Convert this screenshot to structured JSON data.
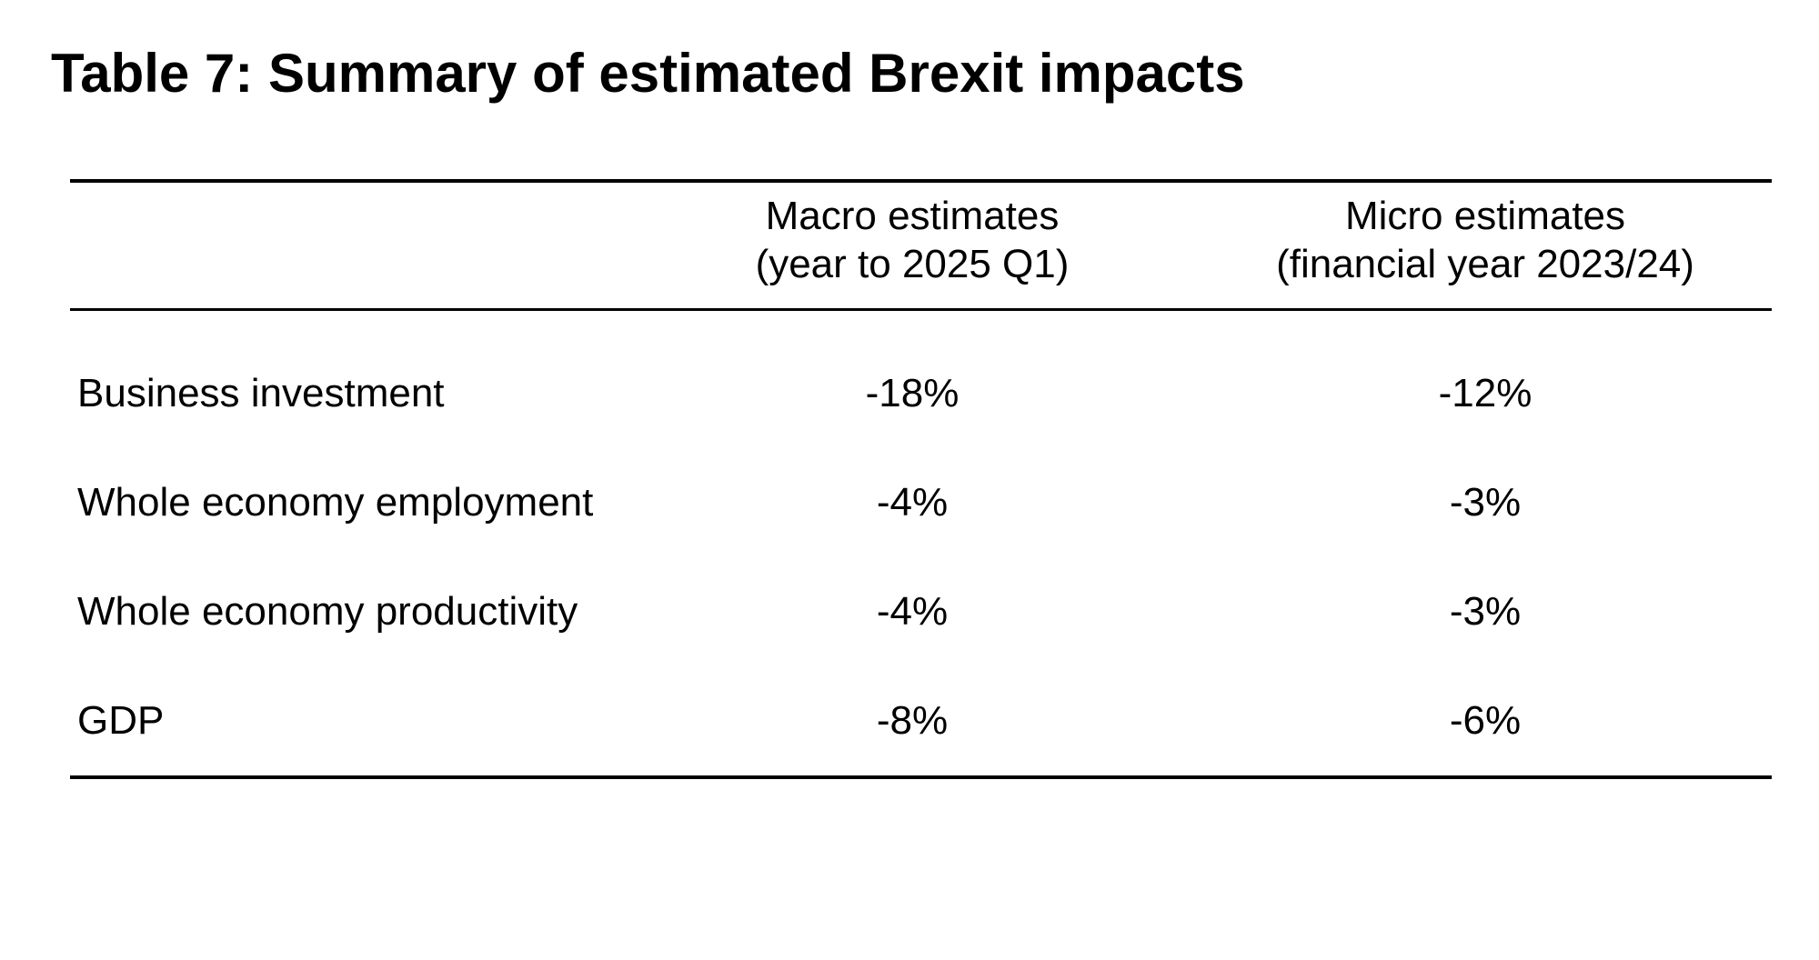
{
  "title": "Table 7: Summary of estimated Brexit impacts",
  "table": {
    "header": {
      "macro": {
        "line1": "Macro estimates",
        "line2": "(year to 2025 Q1)"
      },
      "micro": {
        "line1": "Micro estimates",
        "line2": "(financial year 2023/24)"
      }
    },
    "rows": [
      {
        "label": "Business investment",
        "macro": "-18%",
        "micro": "-12%"
      },
      {
        "label": "Whole economy employment",
        "macro": "-4%",
        "micro": "-3%"
      },
      {
        "label": "Whole economy productivity",
        "macro": "-4%",
        "micro": "-3%"
      },
      {
        "label": "GDP",
        "macro": "-8%",
        "micro": "-6%"
      }
    ]
  },
  "chart_data": {
    "type": "table",
    "title": "Table 7: Summary of estimated Brexit impacts",
    "columns": [
      "",
      "Macro estimates (year to 2025 Q1)",
      "Micro estimates (financial year 2023/24)"
    ],
    "rows": [
      [
        "Business investment",
        "-18%",
        "-12%"
      ],
      [
        "Whole economy employment",
        "-4%",
        "-3%"
      ],
      [
        "Whole economy productivity",
        "-4%",
        "-3%"
      ],
      [
        "GDP",
        "-8%",
        "-6%"
      ]
    ]
  },
  "colors": {
    "background": "#ffffff",
    "text": "#000000",
    "rule": "#000000"
  }
}
